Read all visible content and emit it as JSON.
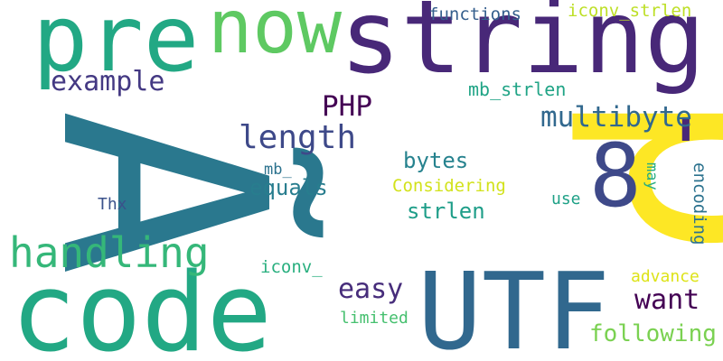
{
  "word_cloud": {
    "words": [
      {
        "text": "p",
        "color": "#fde725"
      },
      {
        "text": "Ã",
        "color": "#2a788e"
      },
      {
        "text": "string",
        "color": "#482878"
      },
      {
        "text": "code",
        "color": "#22a884"
      },
      {
        "text": "UTF",
        "color": "#31688e"
      },
      {
        "text": "pre",
        "color": "#22a884"
      },
      {
        "text": "now",
        "color": "#5ec962"
      },
      {
        "text": "8",
        "color": "#3e4989"
      },
      {
        "text": "'",
        "color": "#482878"
      },
      {
        "text": "handling",
        "color": "#35b779"
      },
      {
        "text": "length",
        "color": "#3e4989"
      },
      {
        "text": "multibyte",
        "color": "#31688e"
      },
      {
        "text": "example",
        "color": "#443983"
      },
      {
        "text": "PHP",
        "color": "#440154"
      },
      {
        "text": "want",
        "color": "#440154"
      },
      {
        "text": "easy",
        "color": "#472d7b"
      },
      {
        "text": "following",
        "color": "#7ad151"
      },
      {
        "text": "equals",
        "color": "#287d8e"
      },
      {
        "text": "bytes",
        "color": "#26828e"
      },
      {
        "text": "strlen",
        "color": "#1f9e89"
      },
      {
        "text": "mb_strlen",
        "color": "#20a486"
      },
      {
        "text": "functions",
        "color": "#355f8d"
      },
      {
        "text": "iconv_strlen",
        "color": "#bddf26"
      },
      {
        "text": "Considering",
        "color": "#d2e21b"
      },
      {
        "text": "encoding",
        "color": "#2c728e"
      },
      {
        "text": "iconv_",
        "color": "#29af7f"
      },
      {
        "text": "mb_",
        "color": "#2c728e"
      },
      {
        "text": "advance",
        "color": "#dde318"
      },
      {
        "text": "limited",
        "color": "#46c06f"
      },
      {
        "text": "use",
        "color": "#1fa187"
      },
      {
        "text": "may",
        "color": "#27ad81"
      },
      {
        "text": "Thx",
        "color": "#3b528b"
      }
    ]
  }
}
